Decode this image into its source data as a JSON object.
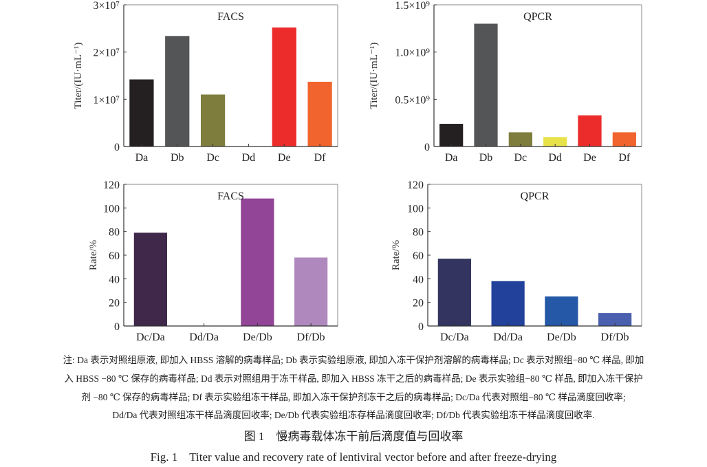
{
  "chart_data": [
    {
      "type": "bar",
      "title": "FACS",
      "ylabel": "Titer/(IU·mL⁻¹)",
      "categories": [
        "Da",
        "Db",
        "Dc",
        "Dd",
        "De",
        "Df"
      ],
      "values": [
        14200000,
        23400000,
        11000000,
        0,
        25200000,
        13700000
      ],
      "colors": [
        "#242021",
        "#545557",
        "#7e7d3d",
        "#e8e24a",
        "#ec2b2b",
        "#f2642d"
      ],
      "ylim": [
        0,
        30000000
      ],
      "yticks": [
        0,
        10000000,
        20000000,
        30000000
      ],
      "ytick_labels": [
        "0",
        "1×10⁷",
        "2×10⁷",
        "3×10⁷"
      ]
    },
    {
      "type": "bar",
      "title": "QPCR",
      "ylabel": "Titer/(IU·mL⁻¹)",
      "categories": [
        "Da",
        "Db",
        "Dc",
        "Dd",
        "De",
        "Df"
      ],
      "values": [
        240000000,
        1300000000,
        150000000,
        100000000,
        330000000,
        150000000
      ],
      "colors": [
        "#242021",
        "#545557",
        "#7e7d3d",
        "#e8e24a",
        "#ec2b2b",
        "#f2642d"
      ],
      "ylim": [
        0,
        1500000000
      ],
      "yticks": [
        0,
        500000000,
        1000000000,
        1500000000
      ],
      "ytick_labels": [
        "0",
        "0.5×10⁹",
        "1.0×10⁹",
        "1.5×10⁹"
      ]
    },
    {
      "type": "bar",
      "title": "FACS",
      "ylabel": "Rate/%",
      "categories": [
        "Dc/Da",
        "Dd/Da",
        "De/Db",
        "Df/Db"
      ],
      "values": [
        79,
        0,
        108,
        58
      ],
      "colors": [
        "#3f284a",
        "#6a3a80",
        "#924597",
        "#af89bd"
      ],
      "ylim": [
        0,
        120
      ],
      "yticks": [
        0,
        20,
        40,
        60,
        80,
        100,
        120
      ],
      "ytick_labels": [
        "0",
        "20",
        "40",
        "60",
        "80",
        "100",
        "120"
      ]
    },
    {
      "type": "bar",
      "title": "QPCR",
      "ylabel": "Rate/%",
      "categories": [
        "Dc/Da",
        "Dd/Da",
        "De/Db",
        "Df/Db"
      ],
      "values": [
        57,
        38,
        25,
        11
      ],
      "colors": [
        "#33345f",
        "#21419a",
        "#2558a6",
        "#4a5fad"
      ],
      "ylim": [
        0,
        120
      ],
      "yticks": [
        0,
        20,
        40,
        60,
        80,
        100,
        120
      ],
      "ytick_labels": [
        "0",
        "20",
        "40",
        "60",
        "80",
        "100",
        "120"
      ]
    }
  ],
  "notes": [
    "注: Da 表示对照组原液, 即加入 HBSS 溶解的病毒样品; Db 表示实验组原液, 即加入冻干保护剂溶解的病毒样品; Dc 表示对照组−80 ℃ 样品, 即加",
    "入 HBSS −80 ℃ 保存的病毒样品; Dd 表示对照组用于冻干样品, 即加入 HBSS 冻干之后的病毒样品; De 表示实验组−80 ℃ 样品, 即加入冻干保护",
    "剂 −80 ℃ 保存的病毒样品; Df 表示实验组冻干样品, 即加入冻干保护剂冻干之后的病毒样品; Dc/Da 代表对照组−80 ℃ 样品滴度回收率;",
    "Dd/Da 代表对照组冻干样品滴度回收率; De/Db 代表实验组冻存样品滴度回收率; Df/Db 代表实验组冻干样品滴度回收率."
  ],
  "caption_cn": "图 1　慢病毒载体冻干前后滴度值与回收率",
  "caption_en": "Fig. 1　Titer value and recovery rate of lentiviral vector before and after freeze-drying"
}
